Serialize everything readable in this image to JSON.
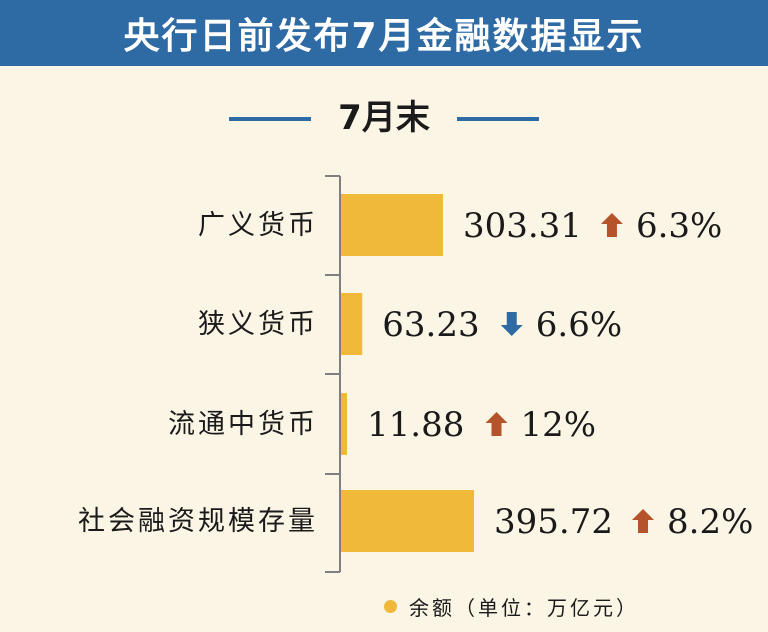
{
  "header": {
    "title": "央行日前发布7月金融数据显示",
    "subtitle": "7月末"
  },
  "legend": {
    "label": "余额（单位：万亿元）"
  },
  "colors": {
    "banner": "#2e6aa3",
    "bar": "#f0b93a",
    "up_arrow": "#b5532a",
    "down_arrow": "#2e6aa3"
  },
  "chart_data": {
    "type": "bar",
    "orientation": "horizontal",
    "categories": [
      "广义货币",
      "狭义货币",
      "流通中货币",
      "社会融资规模存量"
    ],
    "values": [
      303.31,
      63.23,
      11.88,
      395.72
    ],
    "value_labels": [
      "303.31",
      "63.23",
      "11.88",
      "395.72"
    ],
    "changes": [
      {
        "direction": "up",
        "label": "6.3%"
      },
      {
        "direction": "down",
        "label": "6.6%"
      },
      {
        "direction": "up",
        "label": "12%"
      },
      {
        "direction": "up",
        "label": "8.2%"
      }
    ],
    "title": "7月末",
    "legend": "余额（单位：万亿元）",
    "grid": false
  }
}
